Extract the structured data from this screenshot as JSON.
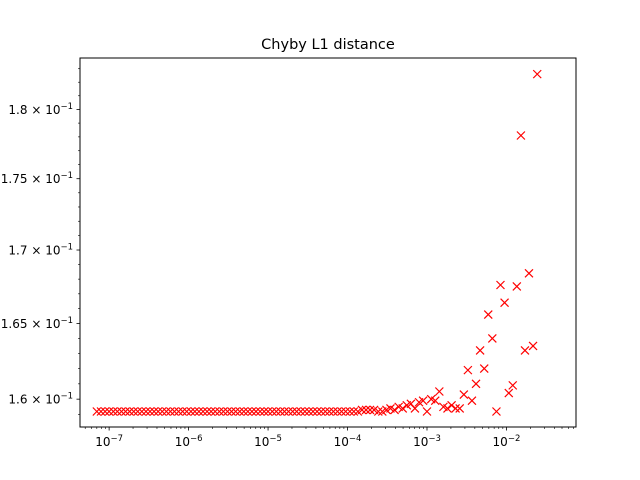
{
  "chart_data": {
    "type": "scatter",
    "title": "Chyby L1 distance",
    "xlabel": "",
    "ylabel": "",
    "x_scale": "log",
    "y_scale": "log",
    "xlim": [
      4.3e-08,
      0.075
    ],
    "ylim": [
      0.1582,
      0.1838
    ],
    "grid": false,
    "x_ticks": [
      {
        "value": 1e-07,
        "base": "10",
        "exp": "−7"
      },
      {
        "value": 1e-06,
        "base": "10",
        "exp": "−6"
      },
      {
        "value": 1e-05,
        "base": "10",
        "exp": "−5"
      },
      {
        "value": 0.0001,
        "base": "10",
        "exp": "−4"
      },
      {
        "value": 0.001,
        "base": "10",
        "exp": "−3"
      },
      {
        "value": 0.01,
        "base": "10",
        "exp": "−2"
      }
    ],
    "y_ticks": [
      {
        "value": 0.16,
        "mant": "1.6",
        "base": "10",
        "exp": "−1"
      },
      {
        "value": 0.165,
        "mant": "1.65",
        "base": "10",
        "exp": "−1"
      },
      {
        "value": 0.17,
        "mant": "1.7",
        "base": "10",
        "exp": "−1"
      },
      {
        "value": 0.175,
        "mant": "1.75",
        "base": "10",
        "exp": "−1"
      },
      {
        "value": 0.18,
        "mant": "1.8",
        "base": "10",
        "exp": "−1"
      }
    ],
    "marker": "x",
    "color": "#ff0000",
    "series": [
      {
        "points": [
          [
            7e-08,
            0.1592
          ],
          [
            7.9e-08,
            0.1592
          ],
          [
            8.9e-08,
            0.1592
          ],
          [
            1e-07,
            0.1592
          ],
          [
            1.13e-07,
            0.1592
          ],
          [
            1.27e-07,
            0.1592
          ],
          [
            1.43e-07,
            0.1592
          ],
          [
            1.61e-07,
            0.1592
          ],
          [
            1.81e-07,
            0.1592
          ],
          [
            2.04e-07,
            0.1592
          ],
          [
            2.29e-07,
            0.1592
          ],
          [
            2.58e-07,
            0.1592
          ],
          [
            2.91e-07,
            0.1592
          ],
          [
            3.27e-07,
            0.1592
          ],
          [
            3.68e-07,
            0.1592
          ],
          [
            4.14e-07,
            0.1592
          ],
          [
            4.66e-07,
            0.1592
          ],
          [
            5.25e-07,
            0.1592
          ],
          [
            5.9e-07,
            0.1592
          ],
          [
            6.64e-07,
            0.1592
          ],
          [
            7.48e-07,
            0.1592
          ],
          [
            8.41e-07,
            0.1592
          ],
          [
            9.47e-07,
            0.1592
          ],
          [
            1.07e-06,
            0.1592
          ],
          [
            1.2e-06,
            0.1592
          ],
          [
            1.35e-06,
            0.1592
          ],
          [
            1.52e-06,
            0.1592
          ],
          [
            1.71e-06,
            0.1592
          ],
          [
            1.92e-06,
            0.1592
          ],
          [
            2.16e-06,
            0.1592
          ],
          [
            2.44e-06,
            0.1592
          ],
          [
            2.74e-06,
            0.1592
          ],
          [
            3.09e-06,
            0.1592
          ],
          [
            3.47e-06,
            0.1592
          ],
          [
            3.91e-06,
            0.1592
          ],
          [
            4.4e-06,
            0.1592
          ],
          [
            4.95e-06,
            0.1592
          ],
          [
            5.57e-06,
            0.1592
          ],
          [
            6.27e-06,
            0.1592
          ],
          [
            7.05e-06,
            0.1592
          ],
          [
            7.94e-06,
            0.1592
          ],
          [
            8.93e-06,
            0.1592
          ],
          [
            1e-05,
            0.1592
          ],
          [
            1.13e-05,
            0.1592
          ],
          [
            1.27e-05,
            0.1592
          ],
          [
            1.43e-05,
            0.1592
          ],
          [
            1.61e-05,
            0.1592
          ],
          [
            1.81e-05,
            0.1592
          ],
          [
            2.04e-05,
            0.1592
          ],
          [
            2.29e-05,
            0.1592
          ],
          [
            2.58e-05,
            0.1592
          ],
          [
            2.91e-05,
            0.1592
          ],
          [
            3.27e-05,
            0.1592
          ],
          [
            3.68e-05,
            0.1592
          ],
          [
            4.14e-05,
            0.1592
          ],
          [
            4.66e-05,
            0.1592
          ],
          [
            5.25e-05,
            0.1592
          ],
          [
            5.9e-05,
            0.1592
          ],
          [
            6.64e-05,
            0.1592
          ],
          [
            7.48e-05,
            0.1592
          ],
          [
            8.41e-05,
            0.1592
          ],
          [
            9.47e-05,
            0.1592
          ],
          [
            0.000107,
            0.1592
          ],
          [
            0.00012,
            0.1592
          ],
          [
            0.000135,
            0.1592
          ],
          [
            0.000152,
            0.1593
          ],
          [
            0.000171,
            0.1593
          ],
          [
            0.000192,
            0.1593
          ],
          [
            0.000216,
            0.1593
          ],
          [
            0.000244,
            0.1592
          ],
          [
            0.000274,
            0.1592
          ],
          [
            0.000309,
            0.1593
          ],
          [
            0.000347,
            0.1594
          ],
          [
            0.000391,
            0.1593
          ],
          [
            0.00044,
            0.1595
          ],
          [
            0.000495,
            0.1594
          ],
          [
            0.000557,
            0.1596
          ],
          [
            0.000627,
            0.1597
          ],
          [
            0.000705,
            0.1594
          ],
          [
            0.000794,
            0.1598
          ],
          [
            0.000893,
            0.1599
          ],
          [
            0.001,
            0.1592
          ],
          [
            0.00113,
            0.16
          ],
          [
            0.00127,
            0.1599
          ],
          [
            0.00143,
            0.1605
          ],
          [
            0.00161,
            0.1595
          ],
          [
            0.00181,
            0.1594
          ],
          [
            0.00204,
            0.1596
          ],
          [
            0.00229,
            0.1594
          ],
          [
            0.00258,
            0.1594
          ],
          [
            0.00291,
            0.1603
          ],
          [
            0.00327,
            0.1619
          ],
          [
            0.00368,
            0.1599
          ],
          [
            0.00414,
            0.161
          ],
          [
            0.00466,
            0.1632
          ],
          [
            0.00525,
            0.162
          ],
          [
            0.0059,
            0.1656
          ],
          [
            0.00664,
            0.164
          ],
          [
            0.00748,
            0.1592
          ],
          [
            0.00841,
            0.1676
          ],
          [
            0.00947,
            0.1664
          ],
          [
            0.0107,
            0.1604
          ],
          [
            0.012,
            0.1609
          ],
          [
            0.0135,
            0.1675
          ],
          [
            0.0152,
            0.1781
          ],
          [
            0.0171,
            0.1632
          ],
          [
            0.0192,
            0.1684
          ],
          [
            0.0216,
            0.1635
          ],
          [
            0.0244,
            0.1826
          ]
        ]
      }
    ]
  }
}
